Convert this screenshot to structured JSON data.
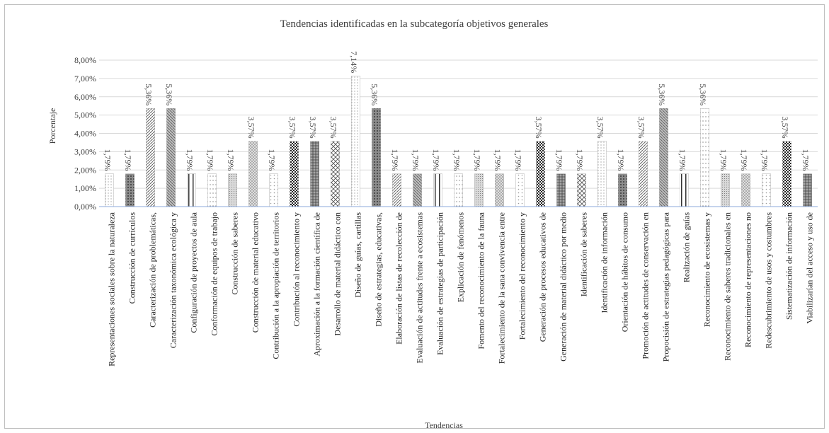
{
  "chart_data": {
    "type": "bar",
    "title": "Tendencias identificadas  en la subcategoría objetivos generales",
    "xlabel": "Tendencias",
    "ylabel": "Porcentaje",
    "ylim": [
      0,
      8
    ],
    "yticks": [
      "0,00%",
      "1,00%",
      "2,00%",
      "3,00%",
      "4,00%",
      "5,00%",
      "6,00%",
      "7,00%",
      "8,00%"
    ],
    "grid": true,
    "categories": [
      "Representaciones sociales sobre la naturaleza",
      "Construcción de currículos",
      "Caracterización de problemáticas,",
      "Caracterización taxonómica ecológica y",
      "Configuración de proyectos de aula",
      "Conformación de equipos de trabajo",
      "Construcción de saberes",
      "Construcción  de material educativo",
      "Contribución a la apropiación de territorios",
      "Contribución al reconocimiento y",
      "Aproximación a la formación científica de",
      "Desarrollo de material didáctico con",
      "Diseño de guías, cartillas",
      "Diseño de estrategias, educativas,",
      "Elaboración de listas de recolección de",
      "Evaluación de actitudes frente a ecosistemas",
      "Evaluación de estrategias de participación",
      "Explicación de fenómenos",
      "Fomento del reconocimiento de la fauna",
      "Fortalecimiento de la sana convivencia entre",
      "Fortalecimiento del reconocimiento y",
      "Generación de procesos educativos de",
      "Generación de material didáctico por medio",
      "Identificación de saberes",
      "Identificación de información",
      "Orientación de hábitos de consumo",
      "Promoción de actitudes de conservación en",
      "Propocisión de estrategias pedagógicas para",
      "Realización de guías",
      "Reconocimiento de ecosistemas y",
      "Reconocimiento de saberes tradicionales en",
      "Reconocimiento de representaciones no",
      "Redescubrimiento de usos y costumbres",
      "Sistematización de información",
      "Viabilizarían del acceso y uso de"
    ],
    "values": [
      1.79,
      1.79,
      5.36,
      5.36,
      1.79,
      1.79,
      1.79,
      3.57,
      1.79,
      3.57,
      3.57,
      3.57,
      7.14,
      5.36,
      1.79,
      1.79,
      1.79,
      1.79,
      1.79,
      1.79,
      1.79,
      3.57,
      1.79,
      1.79,
      3.57,
      1.79,
      3.57,
      5.36,
      1.79,
      5.36,
      1.79,
      1.79,
      1.79,
      3.57,
      1.79
    ],
    "data_labels": [
      "1,79%",
      "1,79%",
      "5,36%",
      "5,36%",
      "1,79%",
      "1,79%",
      "1,79%",
      "3,57%",
      "1,79%",
      "3,57%",
      "3,57%",
      "3,57%",
      "7,14%",
      "5,36%",
      "1,79%",
      "1,79%",
      "1,79%",
      "1,79%",
      "1,79%",
      "1,79%",
      "1,79%",
      "3,57%",
      "1,79%",
      "1,79%",
      "3,57%",
      "1,79%",
      "3,57%",
      "5,36%",
      "1,79%",
      "5,36%",
      "1,79%",
      "1,79%",
      "1,79%",
      "3,57%",
      "1,79%"
    ],
    "colors": {
      "gridline": "#d9d9d9",
      "axis": "#8eaadb",
      "bar": "#595959",
      "text": "#404040"
    }
  }
}
